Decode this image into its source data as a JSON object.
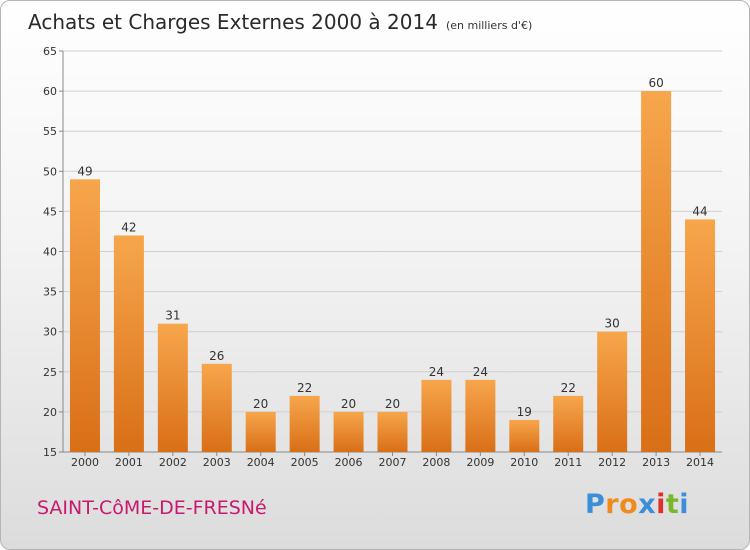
{
  "header": {
    "title": "Achats et Charges Externes 2000 à 2014",
    "unit": "(en milliers d'€)"
  },
  "footer": {
    "commune": "SAINT-CôME-DE-FRESNé",
    "logo": "Proxiti"
  },
  "colors": {
    "bar_light": "#f7a64c",
    "bar_dark": "#d96f17",
    "commune": "#c8196f",
    "logo": [
      "#3a8fd8",
      "#f08a1d",
      "#f08a1d",
      "#3a8fd8",
      "#e0302a",
      "#78b82a",
      "#3a8fd8"
    ]
  },
  "chart_data": {
    "type": "bar",
    "title": "Achats et Charges Externes 2000 à 2014",
    "subtitle": "(en milliers d'€)",
    "categories": [
      "2000",
      "2001",
      "2002",
      "2003",
      "2004",
      "2005",
      "2006",
      "2007",
      "2008",
      "2009",
      "2010",
      "2011",
      "2012",
      "2013",
      "2014"
    ],
    "values": [
      49,
      42,
      31,
      26,
      20,
      22,
      20,
      20,
      24,
      24,
      19,
      22,
      30,
      60,
      44
    ],
    "value_labels": [
      "49",
      "42",
      "31",
      "26",
      "20",
      "22",
      "20",
      "20",
      "24",
      "24",
      "19",
      "22",
      "30",
      "60",
      "44"
    ],
    "ylim": [
      15,
      65
    ],
    "yticks": [
      15,
      20,
      25,
      30,
      35,
      40,
      45,
      50,
      55,
      60,
      65
    ],
    "ytick_labels": [
      "15",
      "20",
      "25",
      "30",
      "35",
      "40",
      "45",
      "50",
      "55",
      "60",
      "65"
    ],
    "grid": true
  }
}
